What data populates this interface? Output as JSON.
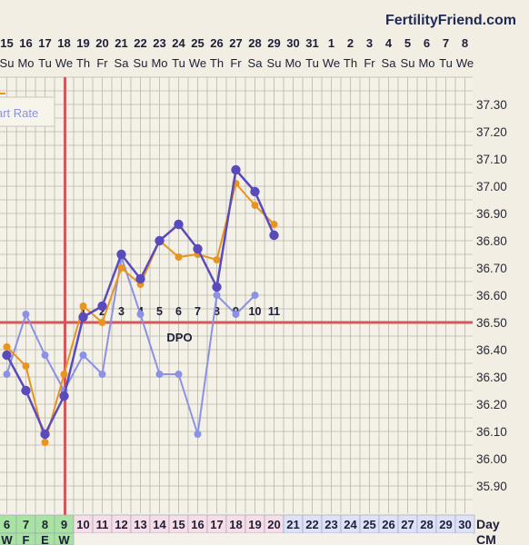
{
  "brand": "FertilityFriend.com",
  "colors": {
    "background": "#f2eee4",
    "grid": "#b9b6a6",
    "coverline": "#d4585a",
    "ovulation_line": "#d4585a",
    "series_main": "#5a4bbd",
    "series_orange": "#e8941e",
    "series_light": "#8b92e6",
    "day_cell_green": "#a9e3a1",
    "day_cell_pink": "#f7dde6",
    "day_cell_blue": "#dde2f7"
  },
  "header": {
    "date_numbers": [
      "15",
      "16",
      "17",
      "18",
      "19",
      "20",
      "21",
      "22",
      "23",
      "24",
      "25",
      "26",
      "27",
      "28",
      "29",
      "30",
      "31",
      "1",
      "2",
      "3",
      "4",
      "5",
      "6",
      "7",
      "8"
    ],
    "weekdays": [
      "Su",
      "Mo",
      "Tu",
      "We",
      "Th",
      "Fr",
      "Sa",
      "Su",
      "Mo",
      "Tu",
      "We",
      "Th",
      "Fr",
      "Sa",
      "Su",
      "Mo",
      "Tu",
      "We",
      "Th",
      "Fr",
      "Sa",
      "Su",
      "Mo",
      "Tu",
      "We"
    ]
  },
  "legend": {
    "visible_text": "art Rate"
  },
  "dpo": {
    "label": "DPO",
    "numbers": [
      "1",
      "2",
      "3",
      "4",
      "5",
      "6",
      "7",
      "8",
      "9",
      "10",
      "11"
    ]
  },
  "footer": {
    "cycle_days": [
      "6",
      "7",
      "8",
      "9",
      "10",
      "11",
      "12",
      "13",
      "14",
      "15",
      "16",
      "17",
      "18",
      "19",
      "20",
      "21",
      "22",
      "23",
      "24",
      "25",
      "26",
      "27",
      "28",
      "29",
      "30"
    ],
    "day_label": "Day",
    "cm_label": "CM",
    "cm_values": [
      "W",
      "F",
      "E",
      "W"
    ]
  },
  "chart_data": {
    "type": "line",
    "title": "",
    "xlabel": "Day",
    "ylabel": "",
    "x": [
      6,
      7,
      8,
      9,
      10,
      11,
      12,
      13,
      14,
      15,
      16,
      17,
      18,
      19,
      20
    ],
    "ylim": [
      35.85,
      37.4
    ],
    "yticks": [
      "35.90",
      "36.00",
      "36.10",
      "36.20",
      "36.30",
      "36.40",
      "36.50",
      "36.60",
      "36.70",
      "36.80",
      "36.90",
      "37.00",
      "37.10",
      "37.20",
      "37.30"
    ],
    "coverline": 36.5,
    "ovulation_day": 9,
    "grid": true,
    "series": [
      {
        "name": "",
        "color": "#5a4bbd",
        "marker": "large",
        "values": [
          36.38,
          36.25,
          36.09,
          36.23,
          36.52,
          36.56,
          36.75,
          36.66,
          36.8,
          36.86,
          36.77,
          36.63,
          37.06,
          36.98,
          36.82
        ]
      },
      {
        "name": "",
        "color": "#e8941e",
        "marker": "small",
        "values": [
          36.41,
          36.34,
          36.06,
          36.31,
          36.56,
          36.5,
          36.7,
          36.64,
          36.8,
          36.74,
          36.75,
          36.73,
          37.01,
          36.93,
          36.86
        ]
      },
      {
        "name": "",
        "color": "#8b92e6",
        "marker": "small",
        "values": [
          36.31,
          36.53,
          36.38,
          36.25,
          36.38,
          36.31,
          36.74,
          36.53,
          36.31,
          36.31,
          36.09,
          36.6,
          36.53,
          36.6,
          null
        ]
      }
    ]
  }
}
